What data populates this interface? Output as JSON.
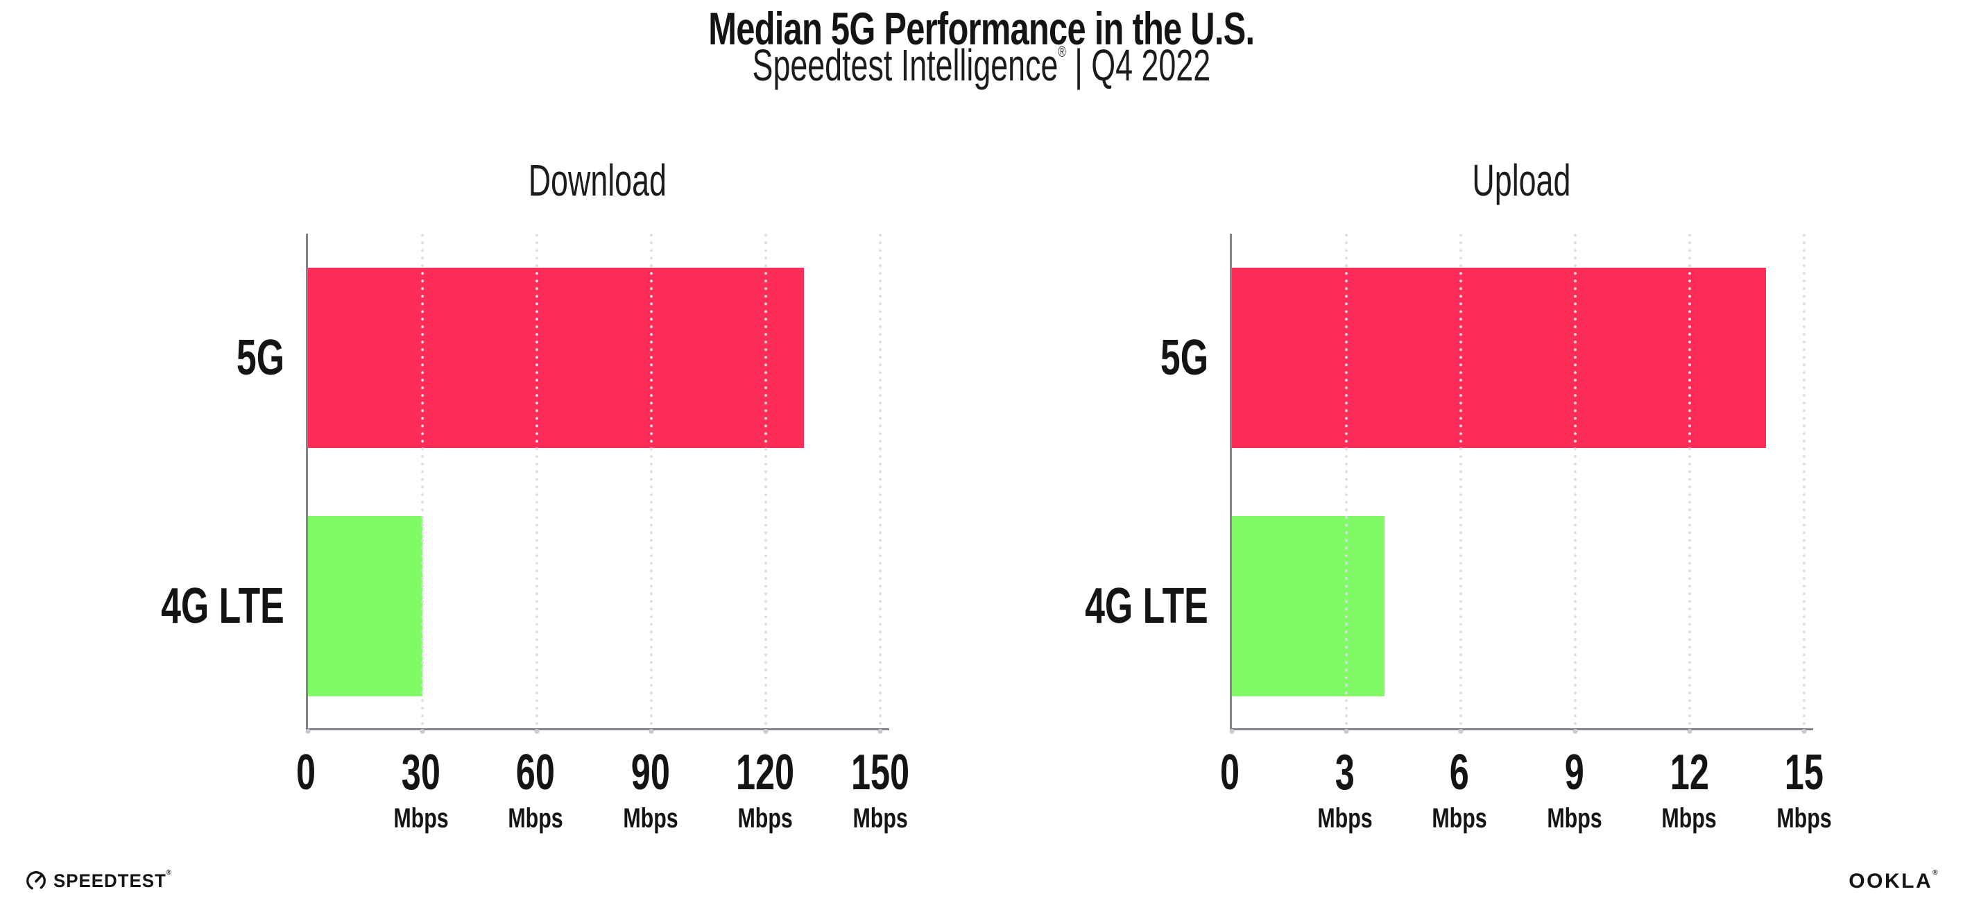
{
  "header": {
    "title": "Median 5G Performance in the U.S.",
    "subtitle_product": "Speedtest Intelligence",
    "subtitle_reg": "®",
    "subtitle_separator": "|",
    "subtitle_period": "Q4 2022"
  },
  "chart_data": [
    {
      "type": "bar",
      "orientation": "horizontal",
      "title": "Download",
      "categories": [
        "5G",
        "4G LTE"
      ],
      "values": [
        130,
        30
      ],
      "unit": "Mbps",
      "xlim": [
        0,
        150
      ],
      "ticks": [
        0,
        30,
        60,
        90,
        120,
        150
      ],
      "tick_unit_label": "Mbps",
      "grid": "dotted-vertical",
      "legend": "none",
      "bar_colors": [
        "#FD2D58",
        "#80FB65"
      ]
    },
    {
      "type": "bar",
      "orientation": "horizontal",
      "title": "Upload",
      "categories": [
        "5G",
        "4G LTE"
      ],
      "values": [
        14,
        4
      ],
      "unit": "Mbps",
      "xlim": [
        0,
        15
      ],
      "ticks": [
        0,
        3,
        6,
        9,
        12,
        15
      ],
      "tick_unit_label": "Mbps",
      "grid": "dotted-vertical",
      "legend": "none",
      "bar_colors": [
        "#FD2D58",
        "#80FB65"
      ]
    }
  ],
  "footer": {
    "speedtest_logo_text": "SPEEDTEST",
    "speedtest_mark": "®",
    "ookla_logo_text": "OOKLA",
    "ookla_mark": "®"
  },
  "colors": {
    "bar_5g": "#FD2D58",
    "bar_4g_lte": "#80FB65",
    "axis_line": "#83838B",
    "gridline_dots": "#DCDCE8",
    "text": "#141414",
    "background": "#FFFFFF"
  }
}
